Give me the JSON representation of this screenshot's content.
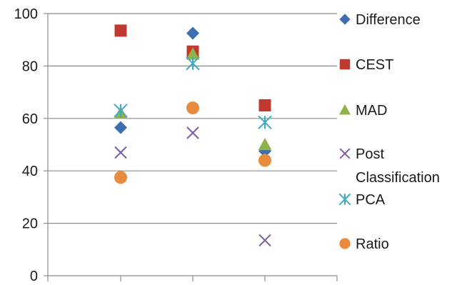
{
  "chart_data": {
    "type": "scatter",
    "title": "",
    "xlabel": "",
    "ylabel": "",
    "ylim": [
      0,
      100
    ],
    "yticks": [
      "0",
      "20",
      "40",
      "60",
      "80",
      "100"
    ],
    "x_categories": 3,
    "grid": "horizontal",
    "legend_position": "right",
    "series": [
      {
        "name": "Difference",
        "marker": "diamond",
        "color": "#3d6ead",
        "values": [
          56.5,
          92.5,
          47.5
        ]
      },
      {
        "name": "CEST",
        "marker": "square",
        "color": "#c0392f",
        "values": [
          93.5,
          85.5,
          65
        ]
      },
      {
        "name": "MAD",
        "marker": "triangle",
        "color": "#8fb34a",
        "values": [
          62,
          84.5,
          50
        ]
      },
      {
        "name": "Post Classification",
        "name_lines": [
          "Post",
          "Classification"
        ],
        "marker": "x",
        "color": "#7d5ea3",
        "values": [
          47,
          54.5,
          13.5
        ]
      },
      {
        "name": "PCA",
        "marker": "asterisk",
        "color": "#3ea9c2",
        "values": [
          63,
          81,
          58.5
        ]
      },
      {
        "name": "Ratio",
        "marker": "circle",
        "color": "#ea8a3c",
        "values": [
          37.5,
          64,
          44
        ]
      }
    ]
  }
}
